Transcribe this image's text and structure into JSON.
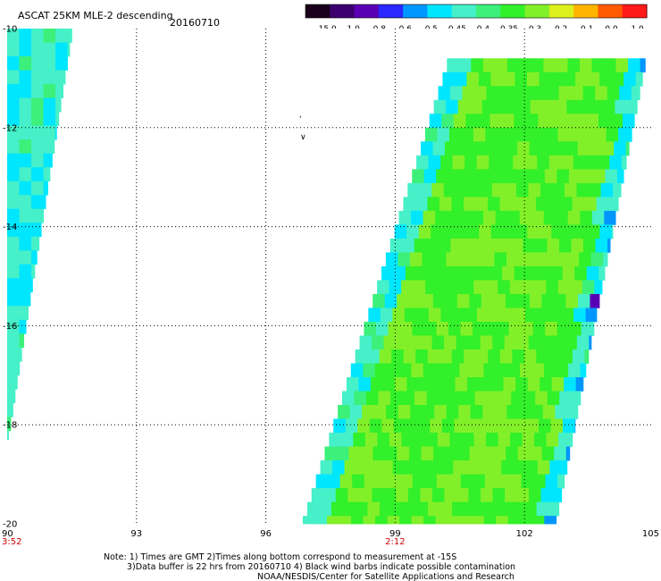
{
  "header": {
    "title": "ASCAT 25KM MLE-2 descending",
    "date": "20160710"
  },
  "colorbar": {
    "tick_labels": [
      "-15.0",
      "-1.0",
      "-0.8",
      "-0.6",
      "-0.5",
      "-0.45",
      "-0.4",
      "-0.35",
      "-0.3",
      "-0.2",
      "-0.1",
      "0.0",
      "1.0"
    ],
    "colors": [
      "#1a001a",
      "#3c006e",
      "#5a00b4",
      "#2828ff",
      "#0096ff",
      "#00e6ff",
      "#46f0c8",
      "#3cf07a",
      "#32f02a",
      "#82f028",
      "#dcf01e",
      "#ffb400",
      "#ff5a00",
      "#ff1a1a"
    ]
  },
  "footer": {
    "note_line1": "Note: 1) Times are GMT 2)Times along bottom correspond to measurement at -15S",
    "note_line2": "3)Data buffer is 22 hrs from 20160710 4) Black wind barbs indicate possible contamination",
    "note_line3": "NOAA/NESDIS/Center for Satellite Applications and Research"
  },
  "chart_data": {
    "type": "heatmap",
    "title": "ASCAT 25KM MLE-2 descending",
    "date": "20160710",
    "x_axis": {
      "range": [
        90,
        105
      ],
      "ticks": [
        90,
        93,
        96,
        99,
        102,
        105
      ],
      "tick_labels": [
        "90",
        "93",
        "96",
        "99",
        "102",
        "105"
      ]
    },
    "y_axis": {
      "range": [
        -20,
        -10
      ],
      "ticks": [
        -10,
        -12,
        -14,
        -16,
        -18,
        -20
      ],
      "tick_labels": [
        "-10",
        "-12",
        "-14",
        "-16",
        "-18",
        "-20"
      ]
    },
    "grid": true,
    "time_labels": [
      {
        "x": 90,
        "label": "3:52",
        "color": "#cc0000"
      },
      {
        "x": 99,
        "label": "2:12",
        "color": "#cc0000"
      }
    ],
    "swaths": [
      {
        "name": "west",
        "top": {
          "lat": -10,
          "lon_west": 90.0,
          "lon_east": 91.5
        },
        "bottom": {
          "lat": -18.3,
          "lon_west": 90.0,
          "lon_east": 90.0
        },
        "typical_value": -0.4,
        "edge_value": -0.45
      },
      {
        "name": "east",
        "top": {
          "lat": -10.6,
          "lon_west": 100.2,
          "lon_east": 104.8
        },
        "bottom": {
          "lat": -20,
          "lon_west": 96.8,
          "lon_east": 102.7
        },
        "typical_value": -0.3,
        "edge_value": -0.45
      }
    ],
    "colorbar": {
      "ticks": [
        -15.0,
        -1.0,
        -0.8,
        -0.6,
        -0.5,
        -0.45,
        -0.4,
        -0.35,
        -0.3,
        -0.2,
        -0.1,
        0.0,
        1.0
      ],
      "colors": [
        "#1a001a",
        "#3c006e",
        "#5a00b4",
        "#2828ff",
        "#0096ff",
        "#00e6ff",
        "#46f0c8",
        "#3cf07a",
        "#32f02a",
        "#82f028",
        "#dcf01e",
        "#ffb400",
        "#ff5a00",
        "#ff1a1a"
      ]
    }
  }
}
